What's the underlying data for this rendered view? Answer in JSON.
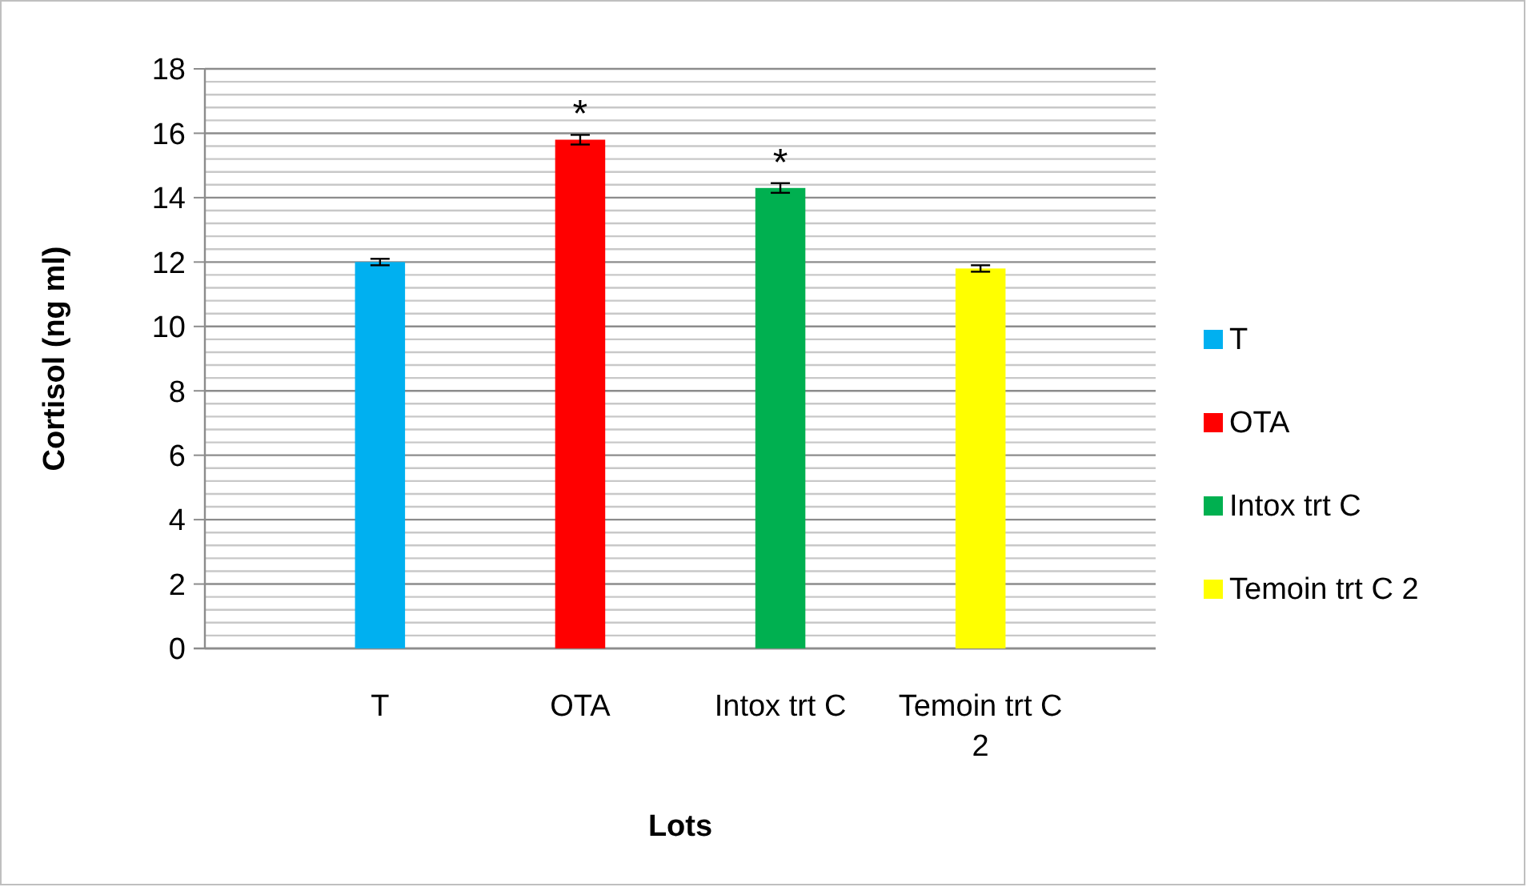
{
  "chart_data": {
    "type": "bar",
    "xlabel": "Lots",
    "ylabel": "Cortisol (ng ml)",
    "categories": [
      "T",
      "OTA",
      "Intox trt C",
      "Temoin trt C 2"
    ],
    "stacked": true,
    "series": [
      {
        "name": "T",
        "color": "#00b0f0",
        "values": [
          12.0,
          null,
          null,
          null
        ],
        "errors": [
          0.1,
          null,
          null,
          null
        ]
      },
      {
        "name": "OTA",
        "color": "#ff0000",
        "values": [
          null,
          15.8,
          null,
          null
        ],
        "errors": [
          null,
          0.15,
          null,
          null
        ]
      },
      {
        "name": "Intox trt C",
        "color": "#00b050",
        "values": [
          null,
          null,
          14.3,
          null
        ],
        "errors": [
          null,
          null,
          0.15,
          null
        ]
      },
      {
        "name": "Temoin trt C 2",
        "color": "#ffff00",
        "values": [
          null,
          null,
          null,
          11.8
        ],
        "errors": [
          null,
          null,
          null,
          0.1
        ]
      }
    ],
    "ylim": [
      0,
      18
    ],
    "yticks": [
      0,
      {
        "value": 0.4,
        "label": null
      },
      {
        "value": 0.8,
        "label": null
      },
      {
        "value": 1.2,
        "label": null
      },
      {
        "value": 1.6,
        "label": null
      },
      2,
      {
        "value": 2.4,
        "label": null
      },
      {
        "value": 2.8,
        "label": null
      },
      {
        "value": 3.2,
        "label": null
      },
      {
        "value": 3.6,
        "label": null
      },
      4,
      {
        "value": 4.4,
        "label": null
      },
      {
        "value": 4.8,
        "label": null
      },
      {
        "value": 5.2,
        "label": null
      },
      {
        "value": 5.6,
        "label": null
      },
      6,
      {
        "value": 6.4,
        "label": null
      },
      {
        "value": 6.8,
        "label": null
      },
      {
        "value": 7.2,
        "label": null
      },
      {
        "value": 7.6,
        "label": null
      },
      8,
      {
        "value": 8.4,
        "label": null
      },
      {
        "value": 8.8,
        "label": null
      },
      {
        "value": 9.2,
        "label": null
      },
      {
        "value": 9.6,
        "label": null
      },
      10,
      {
        "value": 10.4,
        "label": null
      },
      {
        "value": 10.8,
        "label": null
      },
      {
        "value": 11.2,
        "label": null
      },
      {
        "value": 11.6,
        "label": null
      },
      12,
      {
        "value": 12.4,
        "label": null
      },
      {
        "value": 12.8,
        "label": null
      },
      {
        "value": 13.2,
        "label": null
      },
      {
        "value": 13.6,
        "label": null
      },
      14,
      {
        "value": 14.4,
        "label": null
      },
      {
        "value": 14.8,
        "label": null
      },
      {
        "value": 15.2,
        "label": null
      },
      {
        "value": 15.6,
        "label": null
      },
      16,
      {
        "value": 16.4,
        "label": null
      },
      {
        "value": 16.8,
        "label": null
      },
      {
        "value": 17.2,
        "label": null
      },
      {
        "value": 17.6,
        "label": null
      },
      18
    ],
    "grid": "y",
    "legend": "right",
    "annotations": [
      {
        "text": "*",
        "x": "OTA",
        "y": 15.8
      },
      {
        "text": "*",
        "x": "Intox trt C",
        "y": 14.3
      }
    ]
  }
}
